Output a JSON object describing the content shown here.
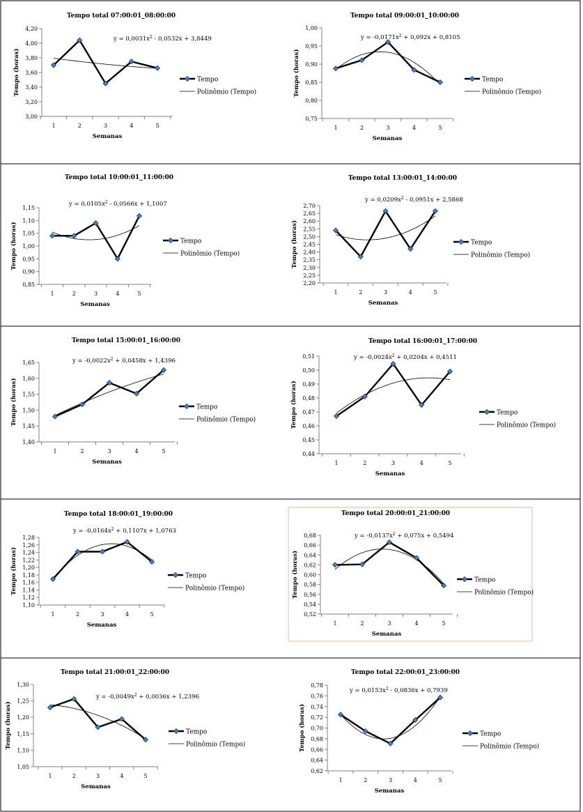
{
  "legend": {
    "series": "Tempo",
    "trend": "Polinômio (Tempo)"
  },
  "colors": {
    "marker": "#4f81bd",
    "line": "#000000",
    "trend": "#000000",
    "highlight_border": "#f2b49a"
  },
  "chart_data": [
    {
      "type": "line",
      "title": "Tempo total 07:00:01_08:00:00",
      "xlabel": "Semanas",
      "ylabel": "Tempo (horas)",
      "categories": [
        "1",
        "2",
        "3",
        "4",
        "5"
      ],
      "ylim": [
        3.0,
        4.2
      ],
      "ytick_step": 0.2,
      "yticks": [
        "3,00",
        "3,20",
        "3,40",
        "3,60",
        "3,80",
        "4,00",
        "4,20"
      ],
      "series": [
        {
          "name": "Tempo",
          "values": [
            3.7,
            4.04,
            3.45,
            3.75,
            3.66
          ]
        }
      ],
      "trendline": {
        "name": "Polinômio (Tempo)",
        "degree": 2,
        "coefficients": [
          0.0031,
          -0.0532,
          3.8449
        ],
        "equation": "y = 0,0031x² - 0,0532x + 3,8449",
        "equation_position": "top-right"
      },
      "legend_placement": "right",
      "grid": false
    },
    {
      "type": "line",
      "title": "Tempo total 09:00:01_10:00:00",
      "xlabel": "Semanas",
      "ylabel": "Tempo (horas)",
      "categories": [
        "1",
        "2",
        "3",
        "4",
        "5"
      ],
      "ylim": [
        0.75,
        1.0
      ],
      "ytick_step": 0.05,
      "yticks": [
        "0,75",
        "0,80",
        "0,85",
        "0,90",
        "0,95",
        "1,00"
      ],
      "series": [
        {
          "name": "Tempo",
          "values": [
            0.888,
            0.911,
            0.961,
            0.884,
            0.85
          ]
        }
      ],
      "trendline": {
        "name": "Polinômio (Tempo)",
        "degree": 2,
        "coefficients": [
          -0.0171,
          0.092,
          0.8105
        ],
        "equation": "y = -0,0171x² + 0,092x + 0,8105",
        "equation_position": "top"
      },
      "legend_placement": "right",
      "grid": false
    },
    {
      "type": "line",
      "title": "Tempo total 10:00:01_11:00:00",
      "xlabel": "Semanas",
      "ylabel": "Tempo (horas)",
      "categories": [
        "1",
        "2",
        "3",
        "4",
        "5"
      ],
      "ylim": [
        0.85,
        1.15
      ],
      "ytick_step": 0.05,
      "yticks": [
        "0,85",
        "0,90",
        "0,95",
        "1,00",
        "1,05",
        "1,10",
        "1,15"
      ],
      "series": [
        {
          "name": "Tempo",
          "values": [
            1.04,
            1.04,
            1.09,
            0.95,
            1.118
          ]
        }
      ],
      "trendline": {
        "name": "Polinômio (Tempo)",
        "degree": 2,
        "coefficients": [
          0.0105,
          -0.0566,
          1.1007
        ],
        "equation": "y = 0,0105x² - 0,0566x + 1,1007",
        "equation_position": "top"
      },
      "legend_placement": "right",
      "grid": false
    },
    {
      "type": "line",
      "title": "Tempo total 13:00:01_14:00:00",
      "xlabel": "Semanas",
      "ylabel": "Tempo (horas)",
      "categories": [
        "1",
        "2",
        "3",
        "4",
        "5"
      ],
      "ylim": [
        2.2,
        2.7
      ],
      "ytick_step": 0.05,
      "yticks": [
        "2,20",
        "2,25",
        "2,30",
        "2,35",
        "2,40",
        "2,45",
        "2,50",
        "2,55",
        "2,60",
        "2,65",
        "2,70"
      ],
      "series": [
        {
          "name": "Tempo",
          "values": [
            2.54,
            2.37,
            2.665,
            2.42,
            2.665
          ]
        }
      ],
      "trendline": {
        "name": "Polinômio (Tempo)",
        "degree": 2,
        "coefficients": [
          0.0209,
          -0.0951,
          2.5868
        ],
        "equation": "y = 0,0209x² - 0,0951x + 2,5868",
        "equation_position": "top"
      },
      "legend_placement": "right",
      "grid": false
    },
    {
      "type": "line",
      "title": "Tempo total 15:00:01_16:00:00",
      "xlabel": "Semanas",
      "ylabel": "Tempo (horas)",
      "categories": [
        "1",
        "2",
        "3",
        "4",
        "5"
      ],
      "ylim": [
        1.4,
        1.65
      ],
      "ytick_step": 0.05,
      "yticks": [
        "1,40",
        "1,45",
        "1,50",
        "1,55",
        "1,60",
        "1,65"
      ],
      "series": [
        {
          "name": "Tempo",
          "values": [
            1.48,
            1.518,
            1.586,
            1.552,
            1.626
          ]
        }
      ],
      "trendline": {
        "name": "Polinômio (Tempo)",
        "degree": 2,
        "coefficients": [
          -0.0022,
          0.0458,
          1.4396
        ],
        "equation": "y = -0,0022x² + 0,0458x + 1,4396",
        "equation_position": "top"
      },
      "legend_placement": "right",
      "grid": false
    },
    {
      "type": "line",
      "title": "Tempo total 16:00:01_17:00:00",
      "xlabel": "Semanas",
      "ylabel": "Tempo (horas)",
      "categories": [
        "1",
        "2",
        "3",
        "4",
        "5"
      ],
      "ylim": [
        0.44,
        0.51
      ],
      "ytick_step": 0.01,
      "yticks": [
        "0,44",
        "0,45",
        "0,46",
        "0,47",
        "0,48",
        "0,49",
        "0,50",
        "0,51"
      ],
      "series": [
        {
          "name": "Tempo",
          "values": [
            0.467,
            0.481,
            0.5045,
            0.475,
            0.499
          ]
        }
      ],
      "trendline": {
        "name": "Polinômio (Tempo)",
        "degree": 2,
        "coefficients": [
          -0.0024,
          0.0204,
          0.4511
        ],
        "equation": "y = -0,0024x² + 0,0204x + 0,4511",
        "equation_position": "top"
      },
      "legend_placement": "right",
      "grid": false
    },
    {
      "type": "line",
      "title": "Tempo total 18:00:01_19:00:00",
      "xlabel": "Semanas",
      "ylabel": "Tempo (horas)",
      "categories": [
        "1",
        "2",
        "3",
        "4",
        "5"
      ],
      "ylim": [
        1.1,
        1.28
      ],
      "ytick_step": 0.02,
      "yticks": [
        "1,10",
        "1,12",
        "1,14",
        "1,16",
        "1,18",
        "1,20",
        "1,22",
        "1,24",
        "1,26",
        "1,28"
      ],
      "series": [
        {
          "name": "Tempo",
          "values": [
            1.169,
            1.242,
            1.242,
            1.268,
            1.215
          ]
        }
      ],
      "trendline": {
        "name": "Polinômio (Tempo)",
        "degree": 2,
        "coefficients": [
          -0.0164,
          0.1107,
          1.0763
        ],
        "equation": "y = -0,0164x² + 0,1107x + 1,0763",
        "equation_position": "top"
      },
      "legend_placement": "right",
      "grid": false
    },
    {
      "type": "line",
      "title": "Tempo total 20:00:01_21:00:00",
      "xlabel": "Semanas",
      "ylabel": "Tempo (horas)",
      "categories": [
        "1",
        "2",
        "3",
        "4",
        "5"
      ],
      "ylim": [
        0.52,
        0.68
      ],
      "ytick_step": 0.02,
      "yticks": [
        "0,52",
        "0,54",
        "0,56",
        "0,58",
        "0,60",
        "0,62",
        "0,64",
        "0,66",
        "0,68"
      ],
      "series": [
        {
          "name": "Tempo",
          "values": [
            0.62,
            0.621,
            0.666,
            0.634,
            0.578
          ]
        }
      ],
      "trendline": {
        "name": "Polinômio (Tempo)",
        "degree": 2,
        "coefficients": [
          -0.0137,
          0.075,
          0.5494
        ],
        "equation": "y = -0,0137x² + 0,075x + 0,5494",
        "equation_position": "top"
      },
      "legend_placement": "right",
      "grid": false,
      "highlighted": true
    },
    {
      "type": "line",
      "title": "Tempo total 21:00:01_22:00:00",
      "xlabel": "Semanas",
      "ylabel": "Tempo (horas)",
      "categories": [
        "1",
        "2",
        "3",
        "4",
        "5"
      ],
      "ylim": [
        1.05,
        1.3
      ],
      "ytick_step": 0.05,
      "yticks": [
        "1,05",
        "1,10",
        "1,15",
        "1,20",
        "1,25",
        "1,30"
      ],
      "series": [
        {
          "name": "Tempo",
          "values": [
            1.23,
            1.256,
            1.17,
            1.195,
            1.132
          ]
        }
      ],
      "trendline": {
        "name": "Polinômio (Tempo)",
        "degree": 2,
        "coefficients": [
          -0.0049,
          0.0036,
          1.2396
        ],
        "equation": "y = -0,0049x² + 0,0036x + 1,2396",
        "equation_position": "top-right"
      },
      "legend_placement": "right",
      "grid": false
    },
    {
      "type": "line",
      "title": "Tempo total 22:00:01_23:00:00",
      "xlabel": "Semanas",
      "ylabel": "Tempo (horas)",
      "categories": [
        "1",
        "2",
        "3",
        "4",
        "5"
      ],
      "ylim": [
        0.62,
        0.78
      ],
      "ytick_step": 0.02,
      "yticks": [
        "0,62",
        "0,64",
        "0,66",
        "0,68",
        "0,70",
        "0,72",
        "0,74",
        "0,76",
        "0,78"
      ],
      "series": [
        {
          "name": "Tempo",
          "values": [
            0.725,
            0.694,
            0.671,
            0.715,
            0.757
          ]
        }
      ],
      "trendline": {
        "name": "Polinômio (Tempo)",
        "degree": 2,
        "coefficients": [
          0.0153,
          -0.0836,
          0.7939
        ],
        "equation": "y = 0,0153x² - 0,0836x + 0,7939",
        "equation_position": "top"
      },
      "legend_placement": "right",
      "grid": false
    }
  ]
}
